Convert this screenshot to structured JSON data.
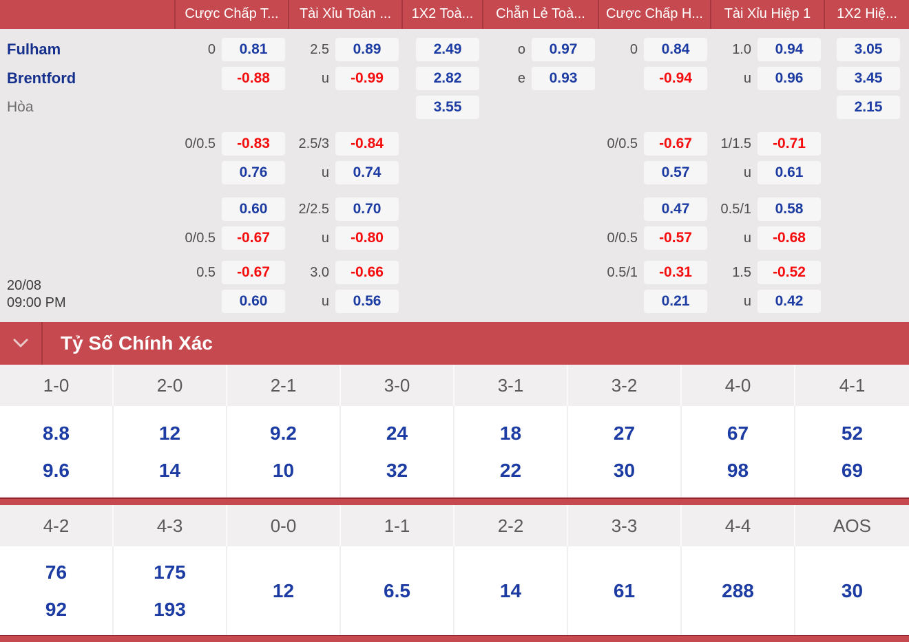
{
  "colors": {
    "accent_red": "#c5494f",
    "divider_dark_red": "#a63940",
    "odds_blue": "#1c3ca3",
    "odds_red": "#f50d0d",
    "team_navy": "#16308d",
    "box_bg": "#f7f6f6",
    "page_bg": "#eae8e8"
  },
  "odds_table": {
    "headers": [
      "Cược Chấp T...",
      "Tài Xỉu Toàn ...",
      "1X2 Toà...",
      "Chẵn Lẻ Toà...",
      "Cược Chấp H...",
      "Tài Xỉu Hiệp 1",
      "1X2 Hiệ..."
    ],
    "market_keys": [
      "handicap-ft",
      "over-under-ft",
      "1x2-ft",
      "odd-even-ft",
      "handicap-h1",
      "over-under-h1",
      "1x2-h1"
    ],
    "match_time": {
      "date": "20/08",
      "time": "09:00 PM"
    },
    "blocks": [
      {
        "rows": [
          {
            "name": {
              "text": "Fulham",
              "type": "team"
            },
            "cells": [
              {
                "line": "0",
                "value": "0.81",
                "color": "blue"
              },
              {
                "line": "2.5",
                "value": "0.89",
                "color": "blue"
              },
              {
                "value": "2.49",
                "color": "blue"
              },
              {
                "line": "o",
                "value": "0.97",
                "color": "blue"
              },
              {
                "line": "0",
                "value": "0.84",
                "color": "blue"
              },
              {
                "line": "1.0",
                "value": "0.94",
                "color": "blue"
              },
              {
                "value": "3.05",
                "color": "blue"
              }
            ]
          },
          {
            "name": {
              "text": "Brentford",
              "type": "team"
            },
            "cells": [
              {
                "value": "-0.88",
                "color": "red"
              },
              {
                "line": "u",
                "value": "-0.99",
                "color": "red"
              },
              {
                "value": "2.82",
                "color": "blue"
              },
              {
                "line": "e",
                "value": "0.93",
                "color": "blue"
              },
              {
                "value": "-0.94",
                "color": "red"
              },
              {
                "line": "u",
                "value": "0.96",
                "color": "blue"
              },
              {
                "value": "3.45",
                "color": "blue"
              }
            ]
          },
          {
            "name": {
              "text": "Hòa",
              "type": "draw"
            },
            "cells": [
              null,
              null,
              {
                "value": "3.55",
                "color": "blue"
              },
              null,
              null,
              null,
              {
                "value": "2.15",
                "color": "blue"
              }
            ]
          }
        ]
      },
      {
        "rows": [
          {
            "cells": [
              {
                "line": "0/0.5",
                "value": "-0.83",
                "color": "red"
              },
              {
                "line": "2.5/3",
                "value": "-0.84",
                "color": "red"
              },
              null,
              null,
              {
                "line": "0/0.5",
                "value": "-0.67",
                "color": "red"
              },
              {
                "line": "1/1.5",
                "value": "-0.71",
                "color": "red"
              },
              null
            ]
          },
          {
            "cells": [
              {
                "value": "0.76",
                "color": "blue"
              },
              {
                "line": "u",
                "value": "0.74",
                "color": "blue"
              },
              null,
              null,
              {
                "value": "0.57",
                "color": "blue"
              },
              {
                "line": "u",
                "value": "0.61",
                "color": "blue"
              },
              null
            ]
          }
        ]
      },
      {
        "rows": [
          {
            "cells": [
              {
                "value": "0.60",
                "color": "blue"
              },
              {
                "line": "2/2.5",
                "value": "0.70",
                "color": "blue"
              },
              null,
              null,
              {
                "value": "0.47",
                "color": "blue"
              },
              {
                "line": "0.5/1",
                "value": "0.58",
                "color": "blue"
              },
              null
            ]
          },
          {
            "cells": [
              {
                "line": "0/0.5",
                "value": "-0.67",
                "color": "red"
              },
              {
                "line": "u",
                "value": "-0.80",
                "color": "red"
              },
              null,
              null,
              {
                "line": "0/0.5",
                "value": "-0.57",
                "color": "red"
              },
              {
                "line": "u",
                "value": "-0.68",
                "color": "red"
              },
              null
            ]
          }
        ]
      },
      {
        "has_time": true,
        "rows": [
          {
            "cells": [
              {
                "line": "0.5",
                "value": "-0.67",
                "color": "red"
              },
              {
                "line": "3.0",
                "value": "-0.66",
                "color": "red"
              },
              null,
              null,
              {
                "line": "0.5/1",
                "value": "-0.31",
                "color": "red"
              },
              {
                "line": "1.5",
                "value": "-0.52",
                "color": "red"
              },
              null
            ]
          },
          {
            "cells": [
              {
                "value": "0.60",
                "color": "blue"
              },
              {
                "line": "u",
                "value": "0.56",
                "color": "blue"
              },
              null,
              null,
              {
                "value": "0.21",
                "color": "blue"
              },
              {
                "line": "u",
                "value": "0.42",
                "color": "blue"
              },
              null
            ]
          }
        ]
      }
    ]
  },
  "correct_score": {
    "title": "Tỷ Số Chính Xác",
    "blocks": [
      {
        "columns": [
          {
            "score": "1-0",
            "odds": [
              "8.8",
              "9.6"
            ]
          },
          {
            "score": "2-0",
            "odds": [
              "12",
              "14"
            ]
          },
          {
            "score": "2-1",
            "odds": [
              "9.2",
              "10"
            ]
          },
          {
            "score": "3-0",
            "odds": [
              "24",
              "32"
            ]
          },
          {
            "score": "3-1",
            "odds": [
              "18",
              "22"
            ]
          },
          {
            "score": "3-2",
            "odds": [
              "27",
              "30"
            ]
          },
          {
            "score": "4-0",
            "odds": [
              "67",
              "98"
            ]
          },
          {
            "score": "4-1",
            "odds": [
              "52",
              "69"
            ]
          }
        ]
      },
      {
        "columns": [
          {
            "score": "4-2",
            "odds": [
              "76",
              "92"
            ]
          },
          {
            "score": "4-3",
            "odds": [
              "175",
              "193"
            ]
          },
          {
            "score": "0-0",
            "odds": [
              "12"
            ]
          },
          {
            "score": "1-1",
            "odds": [
              "6.5"
            ]
          },
          {
            "score": "2-2",
            "odds": [
              "14"
            ]
          },
          {
            "score": "3-3",
            "odds": [
              "61"
            ]
          },
          {
            "score": "4-4",
            "odds": [
              "288"
            ]
          },
          {
            "score": "AOS",
            "odds": [
              "30"
            ]
          }
        ]
      }
    ]
  }
}
